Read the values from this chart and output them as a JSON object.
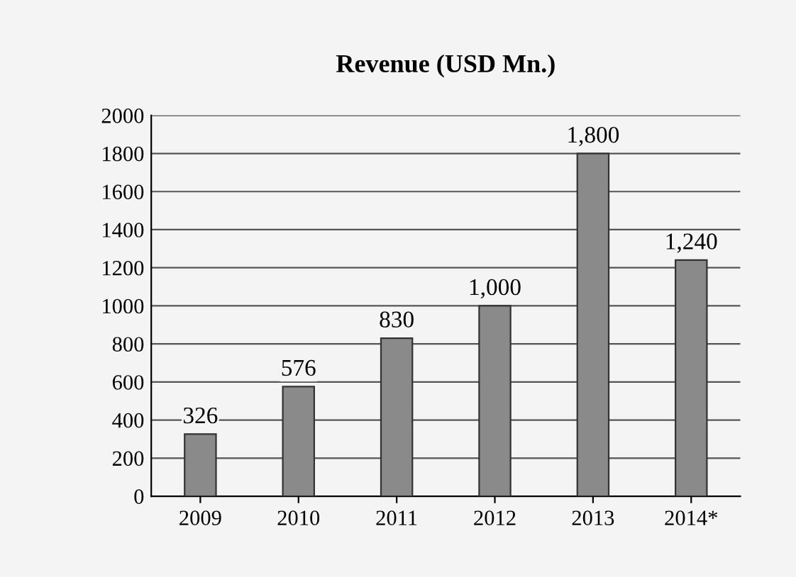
{
  "chart_data": {
    "type": "bar",
    "title": "Revenue (USD Mn.)",
    "categories": [
      "2009",
      "2010",
      "2011",
      "2012",
      "2013",
      "2014*"
    ],
    "values": [
      326,
      576,
      830,
      1000,
      1800,
      1240
    ],
    "value_labels": [
      "326",
      "576",
      "830",
      "1,000",
      "1,800",
      "1,240"
    ],
    "color": "#8a8a8a",
    "ylim": [
      0,
      2000
    ],
    "yticks": [
      0,
      200,
      400,
      600,
      800,
      1000,
      1200,
      1400,
      1600,
      1800,
      2000
    ],
    "grid": "y",
    "legend": false
  }
}
